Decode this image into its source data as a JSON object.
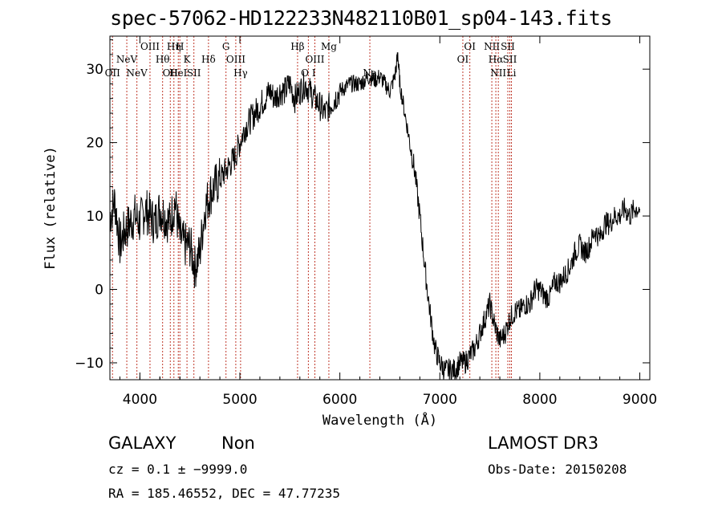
{
  "title": "spec-57062-HD122233N482110B01_sp04-143.fits",
  "info": {
    "object_class": "GALAXY",
    "subclass": "Non",
    "survey": "LAMOST DR3",
    "cz_line": "cz = 0.1 ± −9999.0",
    "obs_date": "Obs-Date: 20150208",
    "coords": "RA = 185.46552, DEC =  47.77235"
  },
  "colors": {
    "spectrum": "#000000",
    "line_marker": "#c0392b",
    "axis": "#000000"
  },
  "chart_data": {
    "type": "line",
    "title": "spec-57062-HD122233N482110B01_sp04-143.fits",
    "xlabel": "Wavelength (Å)",
    "ylabel": "Flux (relative)",
    "xlim": [
      3700,
      9100
    ],
    "ylim": [
      -12.3,
      34.5
    ],
    "xticks": [
      4000,
      5000,
      6000,
      7000,
      8000,
      9000
    ],
    "yticks": [
      -10,
      0,
      10,
      20,
      30
    ],
    "series": [
      {
        "name": "flux",
        "x": [
          3700,
          3750,
          3800,
          3850,
          3900,
          3950,
          4000,
          4050,
          4100,
          4150,
          4200,
          4250,
          4300,
          4350,
          4400,
          4450,
          4500,
          4550,
          4600,
          4650,
          4700,
          4750,
          4800,
          4850,
          4900,
          4950,
          5000,
          5050,
          5100,
          5150,
          5200,
          5250,
          5300,
          5350,
          5400,
          5450,
          5500,
          5550,
          5600,
          5650,
          5700,
          5750,
          5800,
          5850,
          5900,
          5950,
          6000,
          6050,
          6100,
          6150,
          6200,
          6250,
          6300,
          6350,
          6400,
          6450,
          6500,
          6550,
          6580,
          6600,
          6650,
          6700,
          6750,
          6800,
          6850,
          6900,
          6950,
          7000,
          7050,
          7100,
          7150,
          7200,
          7250,
          7300,
          7350,
          7400,
          7450,
          7500,
          7550,
          7600,
          7650,
          7700,
          7750,
          7800,
          7850,
          7900,
          7950,
          8000,
          8050,
          8100,
          8150,
          8200,
          8250,
          8300,
          8350,
          8400,
          8450,
          8500,
          8550,
          8600,
          8650,
          8700,
          8750,
          8800,
          8850,
          8900,
          8950,
          9000
        ],
        "y": [
          10,
          12,
          6,
          8,
          9,
          10,
          9,
          11,
          10,
          9,
          11,
          10,
          9,
          12,
          7,
          6,
          6,
          3,
          5,
          11,
          13,
          14,
          15,
          16,
          17,
          18,
          20,
          22,
          23,
          24,
          25,
          26,
          27,
          26,
          27,
          27,
          28,
          26,
          27,
          28,
          27,
          26,
          25,
          24,
          25,
          26,
          27,
          27.5,
          28,
          28,
          28,
          28.5,
          29,
          28.5,
          29,
          28,
          27,
          29,
          32,
          28,
          24,
          20,
          16,
          10,
          3,
          -3,
          -8,
          -10,
          -11,
          -11,
          -11,
          -10,
          -10,
          -9,
          -8,
          -6,
          -4,
          -2,
          -5,
          -7,
          -6,
          -4,
          -3,
          -3,
          -2,
          -2,
          0,
          0,
          -1,
          -1,
          1,
          1,
          2,
          3,
          5,
          6,
          5,
          6,
          8,
          7,
          9,
          9,
          10,
          10,
          11,
          10,
          11,
          11
        ]
      }
    ],
    "line_markers": [
      {
        "wl": 3726,
        "label": "OII",
        "row": "bottom"
      },
      {
        "wl": 3869,
        "label": "NeV",
        "row": "middle"
      },
      {
        "wl": 3970,
        "label": "NeV",
        "row": "bottom"
      },
      {
        "wl": 4101,
        "label": "OIII",
        "row": "top"
      },
      {
        "wl": 4227,
        "label": "Hθ",
        "row": "middle"
      },
      {
        "wl": 4304,
        "label": "OII",
        "row": "bottom"
      },
      {
        "wl": 4340,
        "label": "Hη",
        "row": "top"
      },
      {
        "wl": 4384,
        "label": "HeI",
        "row": "bottom"
      },
      {
        "wl": 4400,
        "label": "H",
        "row": "top"
      },
      {
        "wl": 4471,
        "label": "K",
        "row": "middle"
      },
      {
        "wl": 4540,
        "label": "SII",
        "row": "bottom"
      },
      {
        "wl": 4686,
        "label": "Hδ",
        "row": "middle"
      },
      {
        "wl": 4861,
        "label": "G",
        "row": "top"
      },
      {
        "wl": 4959,
        "label": "OIII",
        "row": "middle"
      },
      {
        "wl": 5007,
        "label": "Hγ",
        "row": "bottom"
      },
      {
        "wl": 5577,
        "label": "Hβ",
        "row": "top"
      },
      {
        "wl": 5685,
        "label": "O I",
        "row": "bottom"
      },
      {
        "wl": 5750,
        "label": "OIII",
        "row": "middle"
      },
      {
        "wl": 5890,
        "label": "Mg",
        "row": "top"
      },
      {
        "wl": 6300,
        "label": "Na",
        "row": "bottom"
      },
      {
        "wl": 7230,
        "label": "OI",
        "row": "middle"
      },
      {
        "wl": 7300,
        "label": "OI",
        "row": "top"
      },
      {
        "wl": 7520,
        "label": "NII",
        "row": "top"
      },
      {
        "wl": 7560,
        "label": "Hα",
        "row": "middle"
      },
      {
        "wl": 7585,
        "label": "NII",
        "row": "bottom"
      },
      {
        "wl": 7680,
        "label": "SII",
        "row": "top"
      },
      {
        "wl": 7700,
        "label": "SII",
        "row": "middle"
      },
      {
        "wl": 7716,
        "label": "Li",
        "row": "bottom"
      }
    ]
  }
}
